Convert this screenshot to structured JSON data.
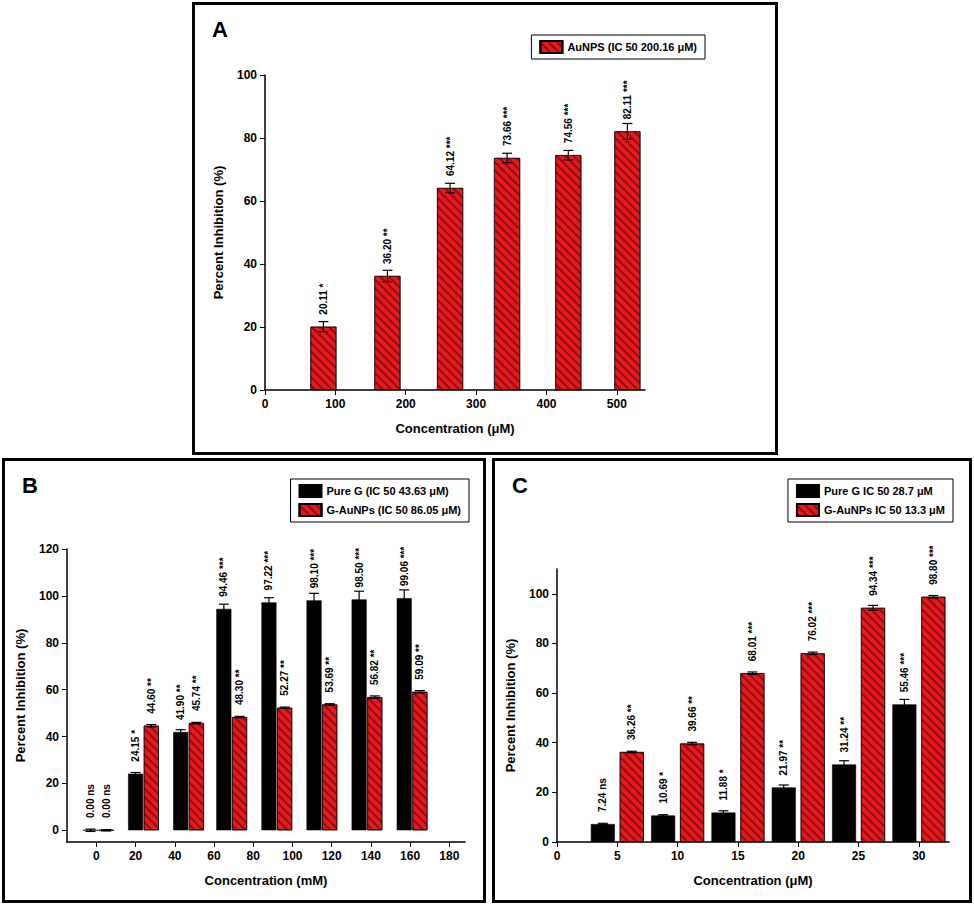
{
  "chart_data": [
    {
      "type": "bar",
      "title": "A",
      "xlabel": "Concentration (μM)",
      "ylabel": "Percent Inhibition (%)",
      "xlim": [
        0,
        540
      ],
      "xticks": [
        0,
        100,
        200,
        300,
        400,
        500
      ],
      "ylim": [
        0,
        100
      ],
      "yticks": [
        0,
        20,
        40,
        60,
        80,
        100
      ],
      "grid": false,
      "legend": "top right",
      "data_labels": true,
      "series": [
        {
          "name": "AuNPS (IC 50 200.16 μM)",
          "color": "#e8191e",
          "x": [
            83,
            174,
            263,
            344,
            431,
            515
          ],
          "values": [
            20.11,
            36.2,
            64.12,
            73.66,
            74.56,
            82.11
          ],
          "value_labels": [
            "20.11",
            "36.20",
            "64.12",
            "73.66",
            "74.56",
            "82.11"
          ],
          "errors": [
            1.6,
            1.8,
            1.5,
            1.5,
            1.5,
            2.5
          ],
          "significance": [
            "*",
            "**",
            "***",
            "***",
            "***",
            "***"
          ]
        }
      ]
    },
    {
      "type": "bar",
      "title": "B",
      "xlabel": "Concentration (mM)",
      "ylabel": "Percent Inhibition (%)",
      "xlim": [
        -15,
        188
      ],
      "xticks": [
        0,
        20,
        40,
        60,
        80,
        100,
        120,
        140,
        160,
        180
      ],
      "ylim": [
        -5,
        120
      ],
      "yticks": [
        0,
        20,
        40,
        60,
        80,
        100,
        120
      ],
      "grid": false,
      "legend": "top right",
      "data_labels": true,
      "series": [
        {
          "name": "Pure G (IC 50 43.63 μM)",
          "color": "#000000",
          "x": [
            -3,
            20,
            43,
            65,
            88,
            111,
            134,
            157
          ],
          "values": [
            0,
            24.15,
            41.9,
            94.46,
            97.22,
            98.1,
            98.5,
            99.06
          ],
          "value_labels": [
            "0.00",
            "24.15",
            "41.90",
            "94.46",
            "97.22",
            "98.10",
            "98.50",
            "99.06"
          ],
          "errors": [
            0.5,
            0.5,
            1,
            2,
            2,
            3,
            3.5,
            3.5
          ],
          "significance": [
            "ns",
            "*",
            "**",
            "***",
            "***",
            "***",
            "***",
            "***"
          ]
        },
        {
          "name": "G-AuNPs (IC 50 86.05 μM)",
          "color": "#e8191e",
          "x": [
            5,
            28,
            51,
            73,
            96,
            119,
            142,
            165
          ],
          "values": [
            0,
            44.6,
            45.74,
            48.3,
            52.27,
            53.69,
            56.82,
            59.09
          ],
          "value_labels": [
            "0.00",
            "44.60",
            "45.74",
            "48.30",
            "52.27",
            "53.69",
            "56.82",
            "59.09"
          ],
          "errors": [
            0.3,
            0.5,
            0.3,
            0.3,
            0.3,
            0.3,
            0.5,
            0.5
          ],
          "significance": [
            "ns",
            "**",
            "**",
            "**",
            "**",
            "**",
            "**",
            "**"
          ]
        }
      ]
    },
    {
      "type": "bar",
      "title": "C",
      "xlabel": "Concentration (μM)",
      "ylabel": "Percent Inhibition (%)",
      "xlim": [
        0,
        32.5
      ],
      "xticks": [
        0,
        5,
        10,
        15,
        20,
        25,
        30
      ],
      "ylim": [
        0,
        110
      ],
      "yticks": [
        0,
        20,
        40,
        60,
        80,
        100
      ],
      "grid": false,
      "legend": "top right",
      "data_labels": true,
      "series": [
        {
          "name": "Pure G IC 50 28.7 μM",
          "color": "#000000",
          "x": [
            3.8,
            8.8,
            13.8,
            18.8,
            23.8,
            28.8
          ],
          "values": [
            7.24,
            10.69,
            11.88,
            21.97,
            31.24,
            55.46
          ],
          "value_labels": [
            "7.24",
            "10.69",
            "11.88",
            "21.97",
            "31.24",
            "55.46"
          ],
          "errors": [
            0.3,
            0.3,
            0.7,
            1,
            1.5,
            2
          ],
          "significance": [
            "ns",
            "*",
            "*",
            "**",
            "**",
            "***"
          ]
        },
        {
          "name": "G-AuNPs IC 50 13.3 μM",
          "color": "#e8191e",
          "x": [
            6.2,
            11.2,
            16.2,
            21.2,
            26.2,
            31.2
          ],
          "values": [
            36.26,
            39.66,
            68.01,
            76.02,
            94.34,
            98.8
          ],
          "value_labels": [
            "36.26",
            "39.66",
            "68.01",
            "76.02",
            "94.34",
            "98.80"
          ],
          "errors": [
            0.3,
            0.5,
            0.5,
            0.5,
            1,
            0.5
          ],
          "significance": [
            "**",
            "**",
            "***",
            "***",
            "***",
            "***"
          ]
        }
      ]
    }
  ]
}
